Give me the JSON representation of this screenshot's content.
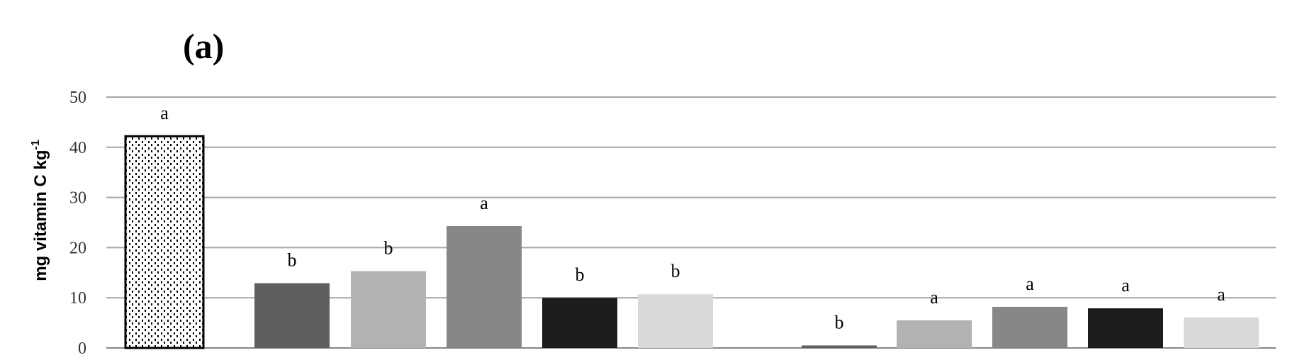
{
  "chart_data": {
    "type": "bar",
    "panel_label": "(a)",
    "ylabel": "mg vitamin C kg",
    "ylabel_superscript": "-1",
    "xlabel": "",
    "ylim": [
      0,
      50
    ],
    "yticks": [
      0,
      10,
      20,
      30,
      40,
      50
    ],
    "grid": true,
    "bars": [
      {
        "value": 42.2,
        "label": "a",
        "color": "#ffffff",
        "pattern": "dotted"
      },
      {
        "value": 12.9,
        "label": "b",
        "color": "#5f5f5f"
      },
      {
        "value": 15.3,
        "label": "b",
        "color": "#b2b2b2"
      },
      {
        "value": 24.3,
        "label": "a",
        "color": "#878787"
      },
      {
        "value": 10.0,
        "label": "b",
        "color": "#1c1c1c"
      },
      {
        "value": 10.7,
        "label": "b",
        "color": "#d9d9d9"
      },
      {
        "value": 0.5,
        "label": "b",
        "color": "#5f5f5f"
      },
      {
        "value": 5.5,
        "label": "a",
        "color": "#b2b2b2"
      },
      {
        "value": 8.2,
        "label": "a",
        "color": "#878787"
      },
      {
        "value": 7.9,
        "label": "a",
        "color": "#1c1c1c"
      },
      {
        "value": 6.1,
        "label": "a",
        "color": "#d9d9d9"
      }
    ]
  }
}
